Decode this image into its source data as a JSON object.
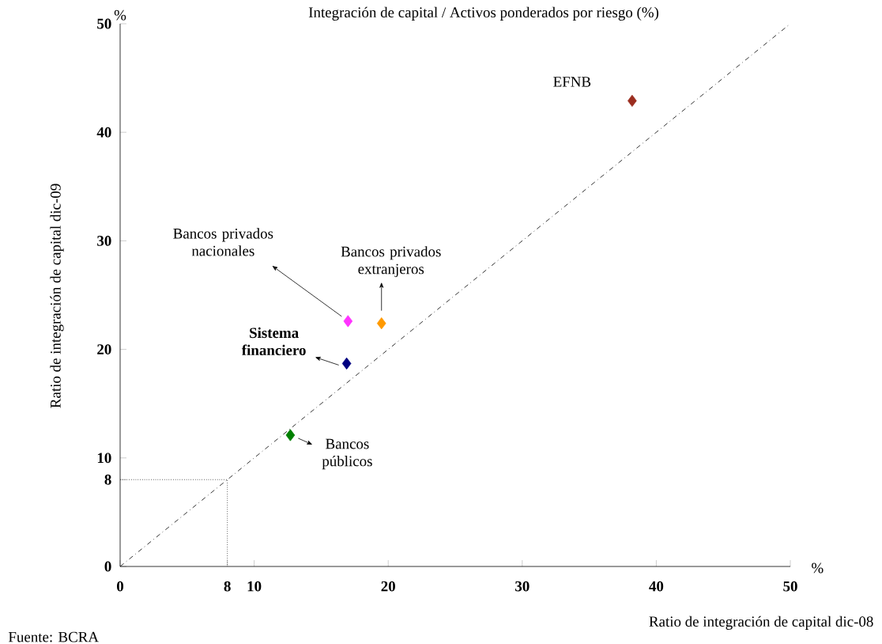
{
  "chart_data": {
    "type": "scatter",
    "title": "Integración de capital / Activos ponderados por riesgo (%)",
    "xlabel": "Ratio de integración de capital dic-08",
    "ylabel": "Ratio de integración de capital dic-09",
    "annotations": [
      "%",
      "%",
      "Fuente: BCRA"
    ],
    "xlim": [
      0,
      50
    ],
    "ylim": [
      0,
      50
    ],
    "xticks": [
      0,
      8,
      10,
      20,
      30,
      40,
      50
    ],
    "yticks": [
      0,
      8,
      10,
      20,
      30,
      40,
      50
    ],
    "grid": false,
    "marker": "diamond",
    "series": [
      {
        "name": "EFNB",
        "color": "#9b2d1f",
        "x": [
          38.2
        ],
        "values": [
          42.9
        ]
      },
      {
        "name": "Bancos privados nacionales",
        "color": "#ff33ff",
        "x": [
          17.0
        ],
        "values": [
          22.6
        ]
      },
      {
        "name": "Bancos privados extranjeros",
        "color": "#ff9900",
        "x": [
          19.5
        ],
        "values": [
          22.4
        ]
      },
      {
        "name": "Sistema financiero",
        "color": "#000080",
        "x": [
          16.9
        ],
        "values": [
          18.7
        ]
      },
      {
        "name": "Bancos públicos",
        "color": "#008000",
        "x": [
          12.7
        ],
        "values": [
          12.1
        ]
      },
      {
        "type": "line",
        "color": "#000000",
        "line_style": "dashed",
        "marker": "none",
        "x": [
          0,
          50
        ],
        "values": [
          0,
          50
        ]
      },
      {
        "type": "line",
        "color": "#000000",
        "line_style": "dotted",
        "marker": "none",
        "x": [
          0,
          8,
          8
        ],
        "values": [
          8,
          8,
          0
        ]
      }
    ]
  }
}
